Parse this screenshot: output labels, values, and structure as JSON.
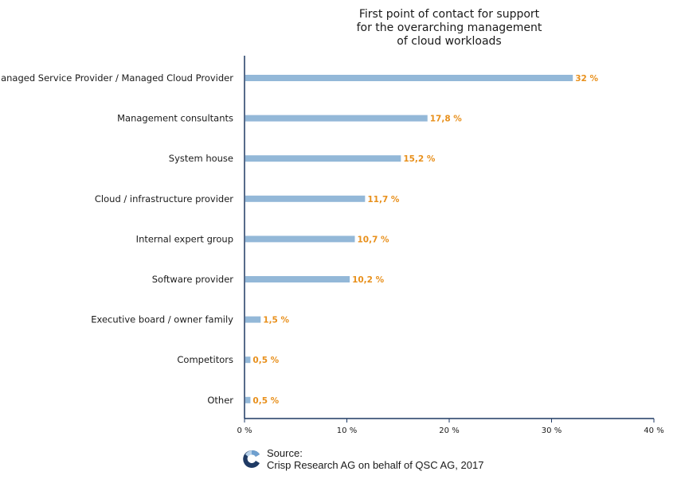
{
  "chart_data": {
    "type": "bar",
    "orientation": "horizontal",
    "title": "First point of contact for support for the overarching management of cloud workloads",
    "title_lines": [
      "First point of contact for support",
      "for the overarching management",
      "of cloud workloads"
    ],
    "categories": [
      "Managed Service Provider / Managed Cloud Provider",
      "Management consultants",
      "System house",
      "Cloud / infrastructure provider",
      "Internal expert group",
      "Software provider",
      "Executive board / owner family",
      "Competitors",
      "Other"
    ],
    "values": [
      32,
      17.8,
      15.2,
      11.7,
      10.7,
      10.2,
      1.5,
      0.5,
      0.5
    ],
    "value_labels": [
      "32 %",
      "17,8 %",
      "15,2 %",
      "11,7 %",
      "10,7 %",
      "10,2 %",
      "1,5 %",
      "0,5 %",
      "0,5 %"
    ],
    "xlim": [
      0,
      40
    ],
    "xticks": [
      0,
      10,
      20,
      30,
      40
    ],
    "xtick_labels": [
      "0 %",
      "10 %",
      "20 %",
      "30 %",
      "40 %"
    ],
    "xlabel": "",
    "ylabel": "",
    "grid": false,
    "colors": {
      "bar": "#93b8d8",
      "label": "#e8901c",
      "axis": "#1f3a64"
    }
  },
  "source": {
    "line1": "Source:",
    "line2": "Crisp Research AG on behalf of QSC AG, 2017",
    "logo_icon": "crisp-research-logo-icon"
  }
}
